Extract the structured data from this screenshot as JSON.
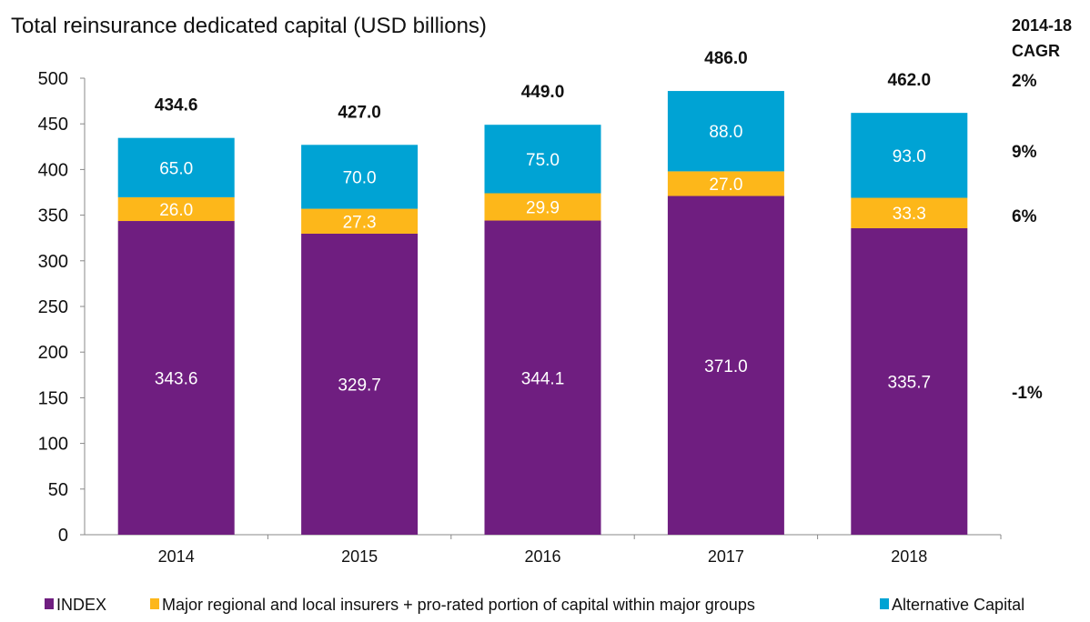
{
  "chart_data": {
    "type": "bar",
    "stacked": true,
    "title": "Total reinsurance dedicated capital (USD billions)",
    "xlabel": "",
    "ylabel": "",
    "ylim": [
      0,
      500
    ],
    "yticks": [
      0,
      50,
      100,
      150,
      200,
      250,
      300,
      350,
      400,
      450,
      500
    ],
    "grid": false,
    "legend_position": "bottom",
    "categories": [
      "2014",
      "2015",
      "2016",
      "2017",
      "2018"
    ],
    "series": [
      {
        "name": "INDEX",
        "color": "#6F1E80",
        "values": [
          343.6,
          329.7,
          344.1,
          371.0,
          335.7
        ],
        "labels": [
          "343.6",
          "329.7",
          "344.1",
          "371.0",
          "335.7"
        ],
        "cagr": "-1%"
      },
      {
        "name": "Major regional and local insurers + pro-rated portion of capital within major groups",
        "color": "#FDB71A",
        "values": [
          26.0,
          27.3,
          29.9,
          27.0,
          33.3
        ],
        "labels": [
          "26.0",
          "27.3",
          "29.9",
          "27.0",
          "33.3"
        ],
        "cagr": "6%"
      },
      {
        "name": "Alternative Capital",
        "color": "#00A3D4",
        "values": [
          65.0,
          70.0,
          75.0,
          88.0,
          93.0
        ],
        "labels": [
          "65.0",
          "70.0",
          "75.0",
          "88.0",
          "93.0"
        ],
        "cagr": "9%"
      }
    ],
    "totals": [
      434.6,
      427.0,
      449.0,
      486.0,
      462.0
    ],
    "total_labels": [
      "434.6",
      "427.0",
      "449.0",
      "486.0",
      "462.0"
    ],
    "total_cagr": "2%",
    "cagr_header": [
      "2014-18",
      "CAGR"
    ]
  }
}
